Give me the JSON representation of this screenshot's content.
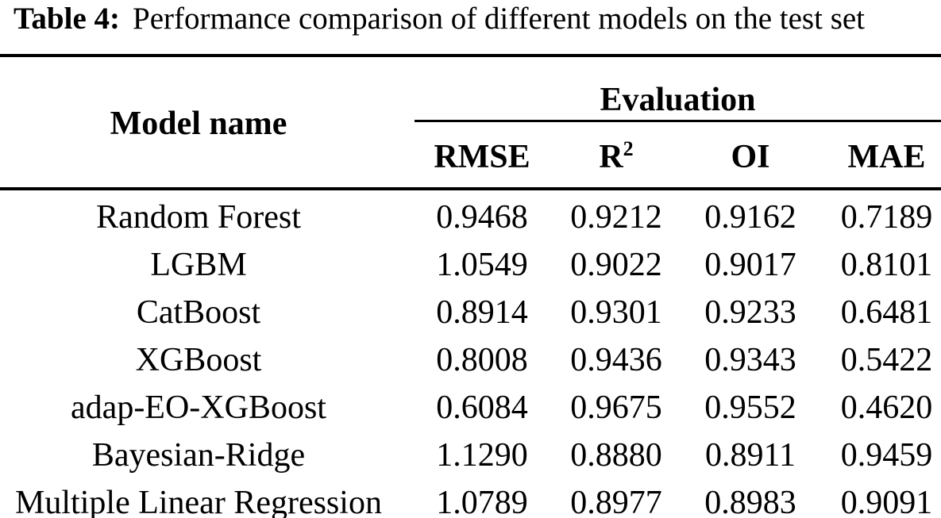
{
  "caption": {
    "label": "Table 4:",
    "text": "Performance comparison of different models on the test set"
  },
  "colors": {
    "text": "#000000",
    "background": "#ffffff",
    "rule": "#000000"
  },
  "table": {
    "model_col_header": "Model name",
    "group_header": "Evaluation",
    "metrics": [
      {
        "label": "RMSE",
        "sup": ""
      },
      {
        "label": "R",
        "sup": "2"
      },
      {
        "label": "OI",
        "sup": ""
      },
      {
        "label": "MAE",
        "sup": ""
      }
    ],
    "rows": [
      {
        "name": "Random Forest",
        "values": [
          "0.9468",
          "0.9212",
          "0.9162",
          "0.7189"
        ]
      },
      {
        "name": "LGBM",
        "values": [
          "1.0549",
          "0.9022",
          "0.9017",
          "0.8101"
        ]
      },
      {
        "name": "CatBoost",
        "values": [
          "0.8914",
          "0.9301",
          "0.9233",
          "0.6481"
        ]
      },
      {
        "name": "XGBoost",
        "values": [
          "0.8008",
          "0.9436",
          "0.9343",
          "0.5422"
        ]
      },
      {
        "name": "adap-EO-XGBoost",
        "values": [
          "0.6084",
          "0.9675",
          "0.9552",
          "0.4620"
        ]
      },
      {
        "name": "Bayesian-Ridge",
        "values": [
          "1.1290",
          "0.8880",
          "0.8911",
          "0.9459"
        ]
      },
      {
        "name": "Multiple Linear Regression",
        "values": [
          "1.0789",
          "0.8977",
          "0.8983",
          "0.9091"
        ]
      }
    ]
  }
}
